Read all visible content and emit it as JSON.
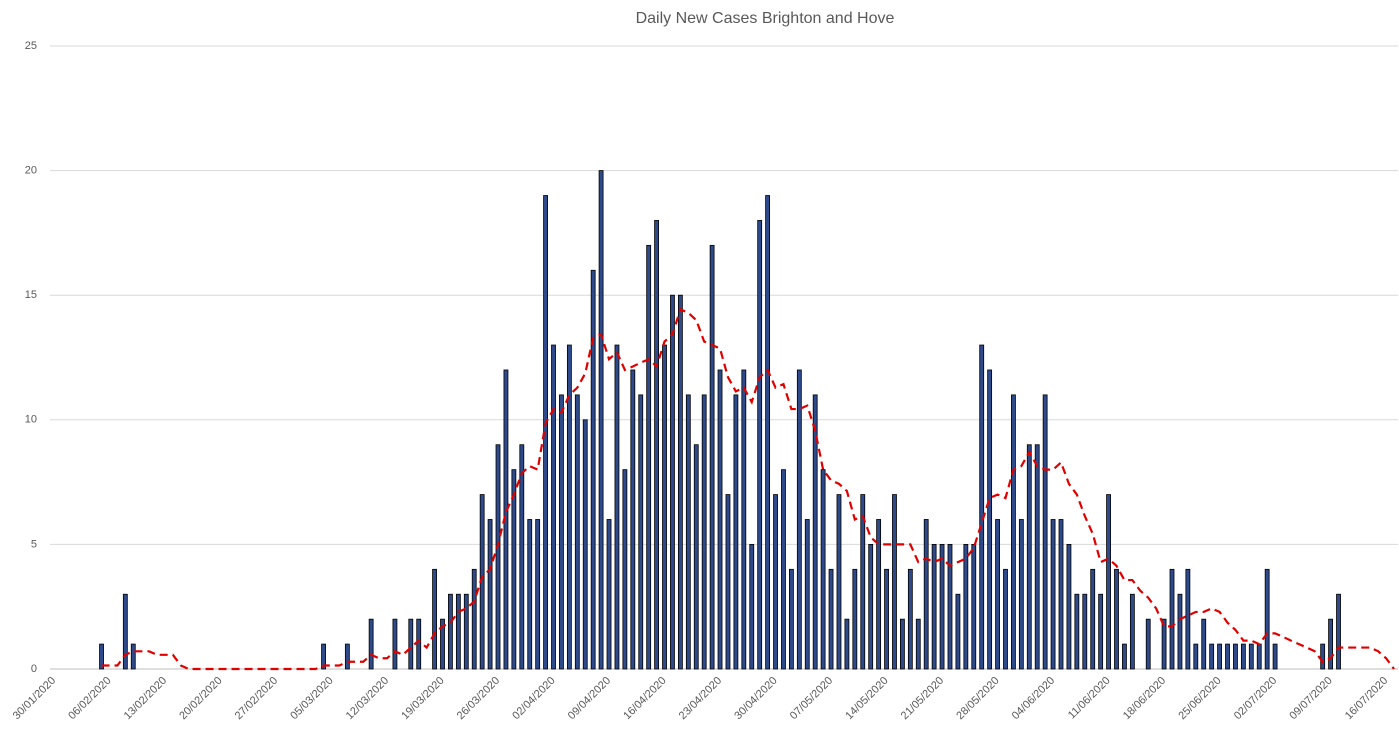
{
  "chart_data": {
    "type": "bar",
    "title": "Daily New Cases Brighton and Hove",
    "categories": [
      "30/01/2020",
      null,
      null,
      null,
      null,
      null,
      null,
      "06/02/2020",
      null,
      null,
      null,
      null,
      null,
      null,
      "13/02/2020",
      null,
      null,
      null,
      null,
      null,
      null,
      "20/02/2020",
      null,
      null,
      null,
      null,
      null,
      null,
      "27/02/2020",
      null,
      null,
      null,
      null,
      null,
      null,
      "05/03/2020",
      null,
      null,
      null,
      null,
      null,
      null,
      "12/03/2020",
      null,
      null,
      null,
      null,
      null,
      null,
      "19/03/2020",
      null,
      null,
      null,
      null,
      null,
      null,
      "26/03/2020",
      null,
      null,
      null,
      null,
      null,
      null,
      "02/04/2020",
      null,
      null,
      null,
      null,
      null,
      null,
      "09/04/2020",
      null,
      null,
      null,
      null,
      null,
      null,
      "16/04/2020",
      null,
      null,
      null,
      null,
      null,
      null,
      "23/04/2020",
      null,
      null,
      null,
      null,
      null,
      null,
      "30/04/2020",
      null,
      null,
      null,
      null,
      null,
      null,
      "07/05/2020",
      null,
      null,
      null,
      null,
      null,
      null,
      "14/05/2020",
      null,
      null,
      null,
      null,
      null,
      null,
      "21/05/2020",
      null,
      null,
      null,
      null,
      null,
      null,
      "28/05/2020",
      null,
      null,
      null,
      null,
      null,
      null,
      "04/06/2020",
      null,
      null,
      null,
      null,
      null,
      null,
      "11/06/2020",
      null,
      null,
      null,
      null,
      null,
      null,
      "18/06/2020",
      null,
      null,
      null,
      null,
      null,
      null,
      "25/06/2020",
      null,
      null,
      null,
      null,
      null,
      null,
      "02/07/2020",
      null,
      null,
      null,
      null,
      null,
      null,
      "09/07/2020",
      null,
      null,
      null,
      null,
      null,
      null,
      "16/07/2020",
      null
    ],
    "series": [
      {
        "type": "bar",
        "color": "#2e4a8a",
        "values": [
          0,
          0,
          0,
          0,
          0,
          0,
          1,
          0,
          0,
          3,
          1,
          0,
          0,
          0,
          0,
          0,
          0,
          0,
          0,
          0,
          0,
          0,
          0,
          0,
          0,
          0,
          0,
          0,
          0,
          0,
          0,
          0,
          0,
          0,
          1,
          0,
          0,
          1,
          0,
          0,
          2,
          0,
          0,
          2,
          0,
          2,
          2,
          0,
          4,
          2,
          3,
          3,
          3,
          4,
          7,
          6,
          9,
          12,
          8,
          9,
          6,
          6,
          19,
          13,
          11,
          13,
          11,
          10,
          16,
          20,
          6,
          13,
          8,
          12,
          11,
          17,
          18,
          13,
          15,
          15,
          11,
          9,
          11,
          17,
          12,
          7,
          11,
          12,
          5,
          18,
          19,
          7,
          8,
          4,
          12,
          6,
          11,
          8,
          4,
          7,
          2,
          4,
          7,
          5,
          6,
          4,
          7,
          2,
          4,
          2,
          6,
          5,
          5,
          5,
          3,
          5,
          5,
          13,
          12,
          6,
          4,
          11,
          6,
          9,
          9,
          11,
          6,
          6,
          5,
          3,
          3,
          4,
          3,
          7,
          4,
          1,
          3,
          0,
          2,
          0,
          2,
          4,
          3,
          4,
          1,
          2,
          1,
          1,
          1,
          1,
          1,
          1,
          1,
          4,
          1,
          0,
          0,
          0,
          0,
          0,
          1,
          2,
          3,
          0,
          0,
          0,
          0,
          0,
          0,
          0
        ]
      },
      {
        "type": "line",
        "color": "#e00000",
        "dashed": true,
        "values": [
          null,
          null,
          null,
          null,
          null,
          null,
          0.14,
          0.14,
          0.14,
          0.57,
          0.71,
          0.71,
          0.71,
          0.57,
          0.57,
          0.57,
          0.14,
          0,
          0,
          0,
          0,
          0,
          0,
          0,
          0,
          0,
          0,
          0,
          0,
          0,
          0,
          0,
          0,
          0,
          0.14,
          0.14,
          0.14,
          0.29,
          0.29,
          0.29,
          0.57,
          0.43,
          0.43,
          0.71,
          0.57,
          0.86,
          1.14,
          0.86,
          1.43,
          1.71,
          1.86,
          2.29,
          2.43,
          2.71,
          3.71,
          4,
          5,
          6.29,
          7,
          7.86,
          8.14,
          8,
          9.86,
          10.43,
          10.29,
          11,
          11.29,
          11.86,
          13.29,
          13.43,
          12.43,
          12.71,
          12,
          12.14,
          12.29,
          12.43,
          12.14,
          13.14,
          13.43,
          14.43,
          14.29,
          14,
          13.14,
          13,
          12.86,
          11.71,
          11.14,
          11.29,
          10.71,
          11.71,
          12,
          11.29,
          11.43,
          10.43,
          10.43,
          10.57,
          9.57,
          8,
          7.57,
          7.43,
          7.14,
          6,
          6.14,
          5.29,
          5,
          5,
          5,
          5,
          5,
          4.29,
          4.43,
          4.29,
          4.43,
          4.14,
          4.29,
          4.43,
          4.86,
          5.86,
          6.86,
          7,
          6.86,
          8,
          8.14,
          8.71,
          8.14,
          8,
          8,
          8.29,
          7.43,
          7,
          6.14,
          5.43,
          4.29,
          4.43,
          4.14,
          3.57,
          3.57,
          3.14,
          2.86,
          2.43,
          1.71,
          1.71,
          2,
          2.14,
          2.29,
          2.29,
          2.43,
          2.29,
          1.86,
          1.57,
          1.14,
          1.14,
          1,
          1.43,
          1.43,
          1.29,
          1.14,
          1,
          0.86,
          0.71,
          0.29,
          0.43,
          0.86,
          0.86,
          0.86,
          0.86,
          0.86,
          0.71,
          0.43,
          0
        ]
      }
    ],
    "ylim": [
      0,
      25
    ],
    "yticks": [
      0,
      5,
      10,
      15,
      20,
      25
    ],
    "grid": true
  }
}
